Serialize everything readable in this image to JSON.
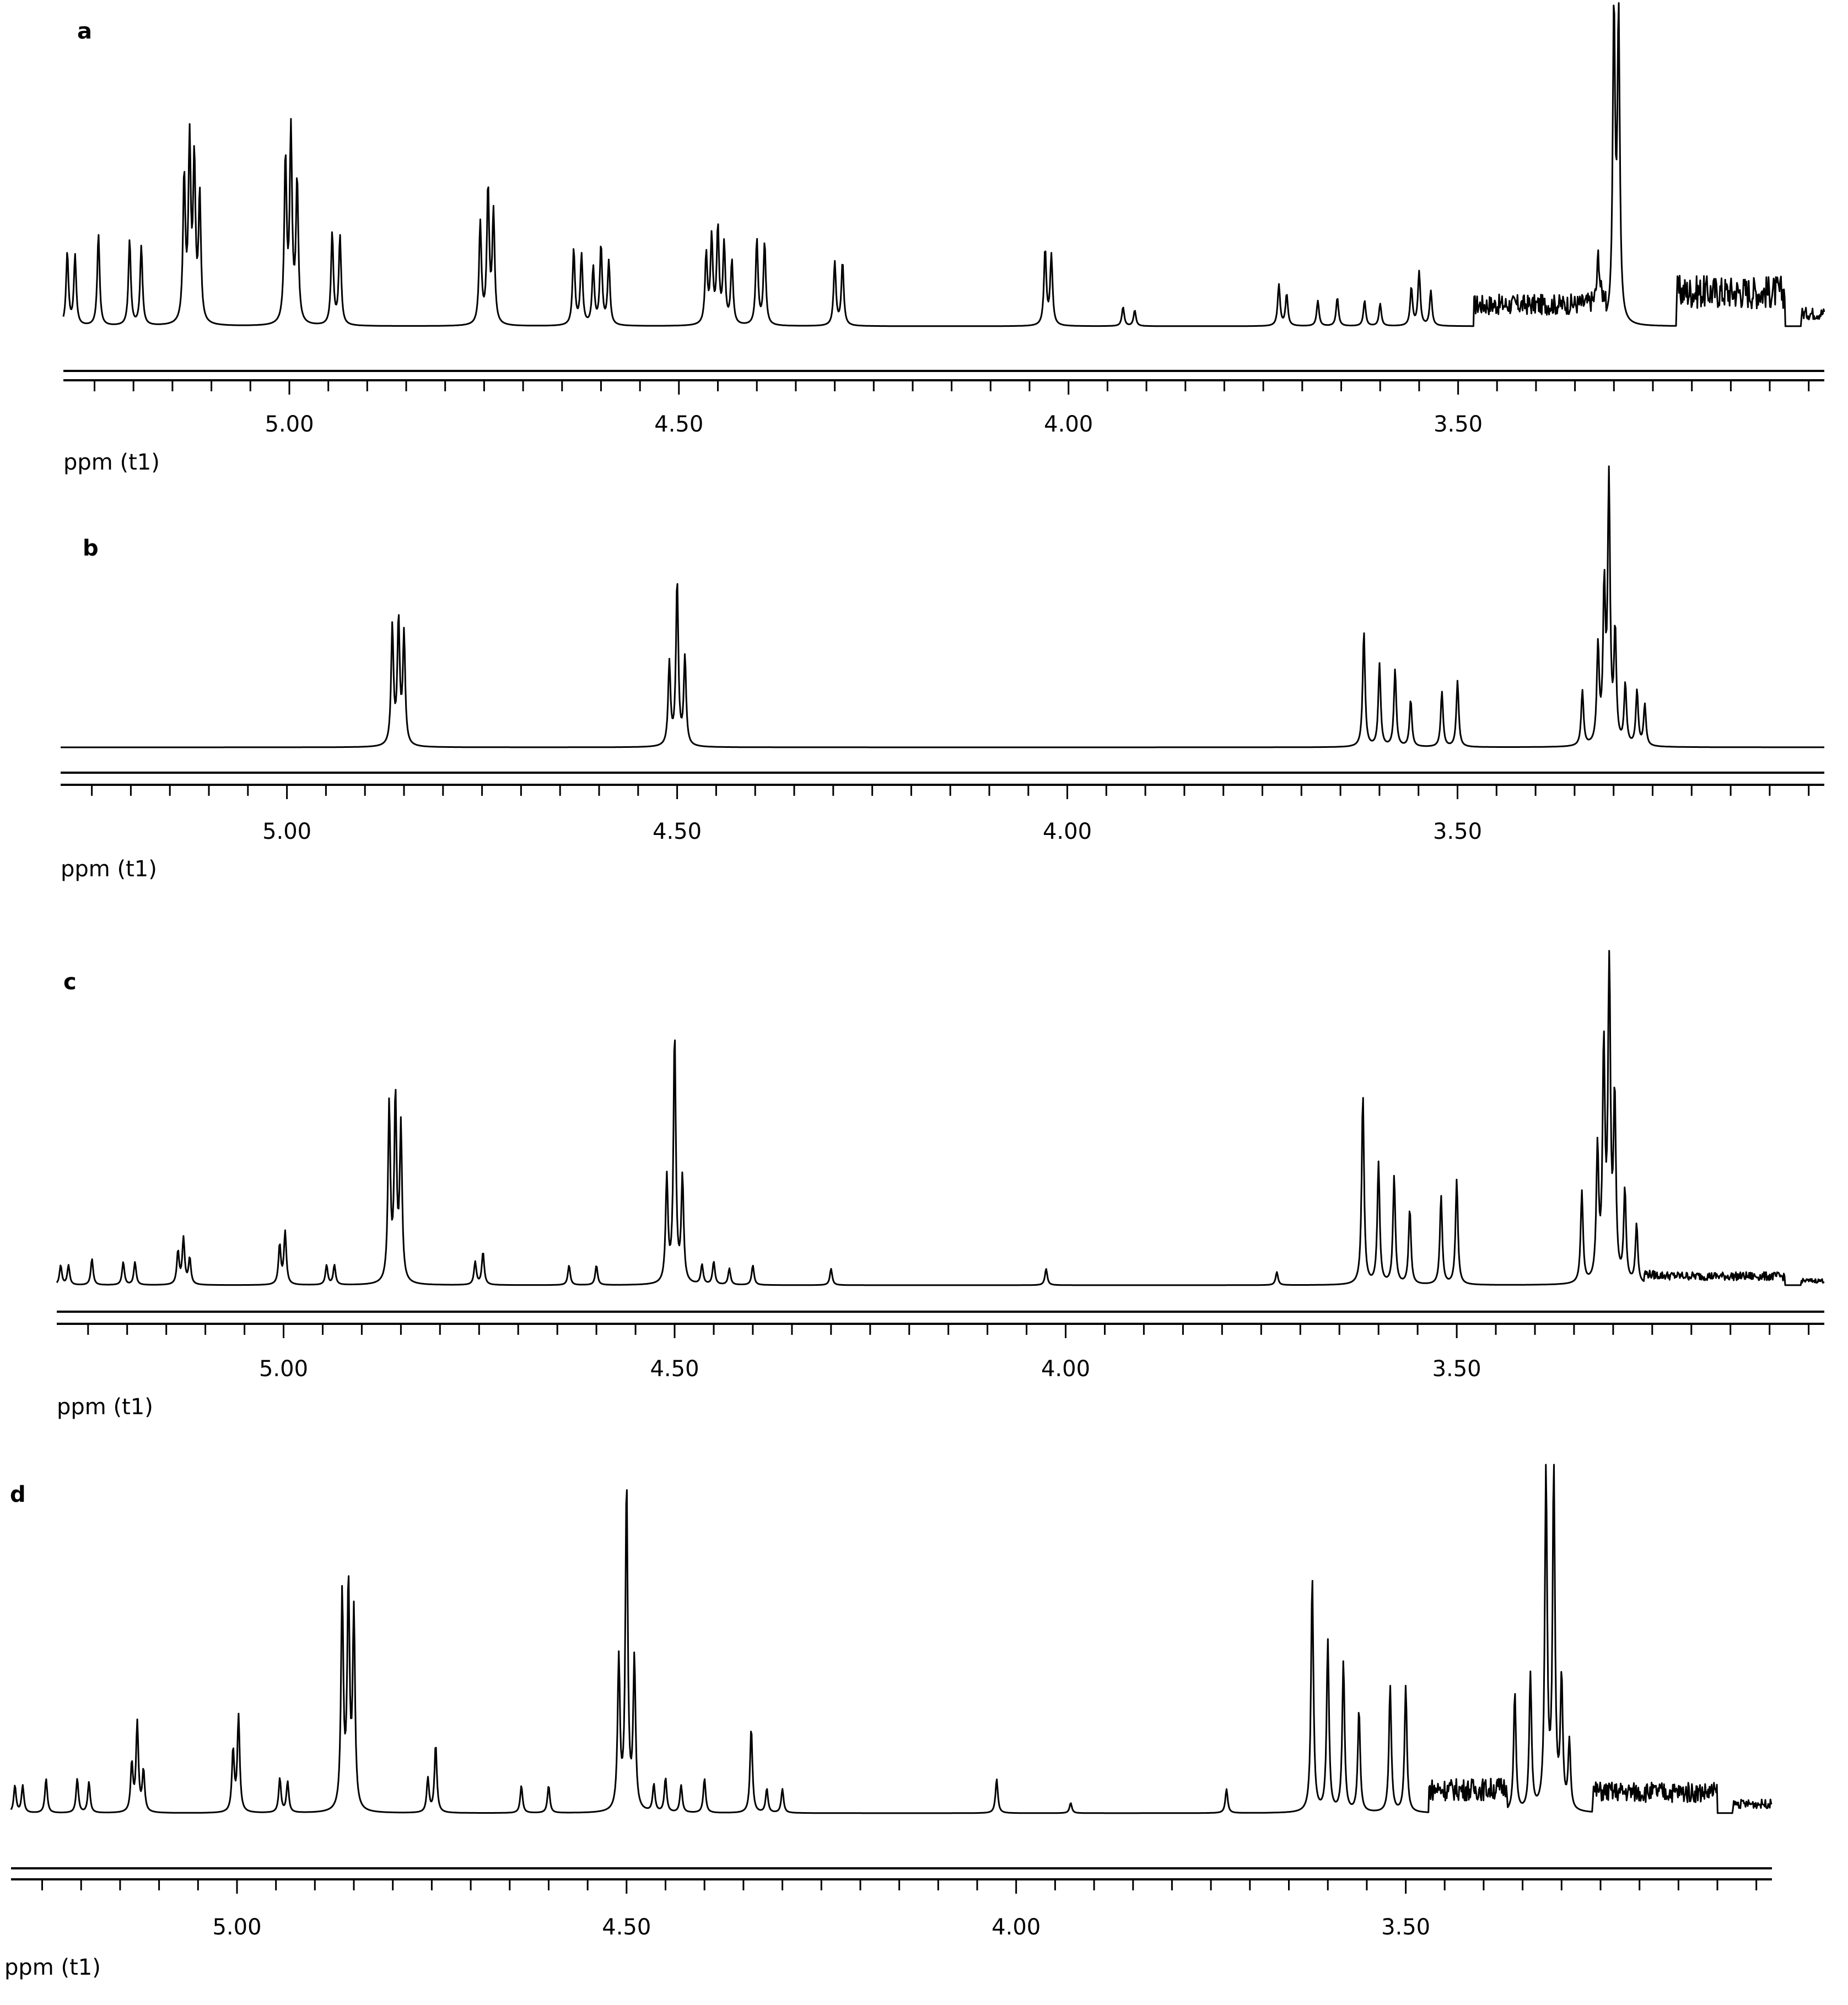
{
  "figure": {
    "stroke_color": "#000000",
    "background": "#ffffff"
  },
  "chart_data": [
    {
      "type": "line",
      "panel_label": "a",
      "xlabel": "ppm (t1)",
      "ylabel": "",
      "x_reversed": true,
      "xlim": [
        5.29,
        3.03
      ],
      "ylim": [
        0,
        1
      ],
      "xticks": [
        5.0,
        4.5,
        4.0,
        3.5
      ],
      "xtick_labels": [
        "5.00",
        "4.50",
        "4.00",
        "3.50"
      ],
      "peaks": [
        {
          "ppm": 5.285,
          "height": 0.23
        },
        {
          "ppm": 5.275,
          "height": 0.22
        },
        {
          "ppm": 5.245,
          "height": 0.29
        },
        {
          "ppm": 5.205,
          "height": 0.27
        },
        {
          "ppm": 5.19,
          "height": 0.25
        },
        {
          "ppm": 5.135,
          "height": 0.46
        },
        {
          "ppm": 5.128,
          "height": 0.56
        },
        {
          "ppm": 5.122,
          "height": 0.5
        },
        {
          "ppm": 5.115,
          "height": 0.4
        },
        {
          "ppm": 5.005,
          "height": 0.52
        },
        {
          "ppm": 4.998,
          "height": 0.6
        },
        {
          "ppm": 4.99,
          "height": 0.45
        },
        {
          "ppm": 4.945,
          "height": 0.29
        },
        {
          "ppm": 4.935,
          "height": 0.28
        },
        {
          "ppm": 4.755,
          "height": 0.32
        },
        {
          "ppm": 4.745,
          "height": 0.43
        },
        {
          "ppm": 4.738,
          "height": 0.35
        },
        {
          "ppm": 4.635,
          "height": 0.24
        },
        {
          "ppm": 4.625,
          "height": 0.22
        },
        {
          "ppm": 4.61,
          "height": 0.18
        },
        {
          "ppm": 4.6,
          "height": 0.25
        },
        {
          "ppm": 4.59,
          "height": 0.2
        },
        {
          "ppm": 4.465,
          "height": 0.22
        },
        {
          "ppm": 4.458,
          "height": 0.27
        },
        {
          "ppm": 4.45,
          "height": 0.3
        },
        {
          "ppm": 4.442,
          "height": 0.25
        },
        {
          "ppm": 4.432,
          "height": 0.2
        },
        {
          "ppm": 4.4,
          "height": 0.27
        },
        {
          "ppm": 4.39,
          "height": 0.26
        },
        {
          "ppm": 4.3,
          "height": 0.2
        },
        {
          "ppm": 4.29,
          "height": 0.2
        },
        {
          "ppm": 4.03,
          "height": 0.24
        },
        {
          "ppm": 4.022,
          "height": 0.22
        },
        {
          "ppm": 3.93,
          "height": 0.06
        },
        {
          "ppm": 3.915,
          "height": 0.05
        },
        {
          "ppm": 3.73,
          "height": 0.13
        },
        {
          "ppm": 3.72,
          "height": 0.1
        },
        {
          "ppm": 3.68,
          "height": 0.08
        },
        {
          "ppm": 3.655,
          "height": 0.09
        },
        {
          "ppm": 3.62,
          "height": 0.08
        },
        {
          "ppm": 3.6,
          "height": 0.07
        },
        {
          "ppm": 3.56,
          "height": 0.12
        },
        {
          "ppm": 3.55,
          "height": 0.17
        },
        {
          "ppm": 3.535,
          "height": 0.11
        },
        {
          "ppm": 3.3,
          "height": 0.98
        },
        {
          "ppm": 3.294,
          "height": 0.96
        },
        {
          "ppm": 3.32,
          "height": 0.15
        }
      ],
      "broad_features": [
        {
          "from": 3.48,
          "to": 3.31,
          "height": 0.1
        },
        {
          "from": 3.22,
          "to": 3.08,
          "height": 0.16
        },
        {
          "from": 3.06,
          "to": 3.03,
          "height": 0.06
        }
      ]
    },
    {
      "type": "line",
      "panel_label": "b",
      "xlabel": "ppm (t1)",
      "ylabel": "",
      "x_reversed": true,
      "xlim": [
        5.29,
        3.03
      ],
      "ylim": [
        0,
        1
      ],
      "xticks": [
        5.0,
        4.5,
        4.0,
        3.5
      ],
      "xtick_labels": [
        "5.00",
        "4.50",
        "4.00",
        "3.50"
      ],
      "peaks": [
        {
          "ppm": 4.865,
          "height": 0.43
        },
        {
          "ppm": 4.857,
          "height": 0.45
        },
        {
          "ppm": 4.85,
          "height": 0.4
        },
        {
          "ppm": 4.51,
          "height": 0.3
        },
        {
          "ppm": 4.5,
          "height": 0.6
        },
        {
          "ppm": 4.49,
          "height": 0.32
        },
        {
          "ppm": 3.62,
          "height": 0.42
        },
        {
          "ppm": 3.6,
          "height": 0.3
        },
        {
          "ppm": 3.58,
          "height": 0.28
        },
        {
          "ppm": 3.56,
          "height": 0.17
        },
        {
          "ppm": 3.52,
          "height": 0.2
        },
        {
          "ppm": 3.5,
          "height": 0.24
        },
        {
          "ppm": 3.34,
          "height": 0.2
        },
        {
          "ppm": 3.32,
          "height": 0.35
        },
        {
          "ppm": 3.312,
          "height": 0.55
        },
        {
          "ppm": 3.306,
          "height": 0.95
        },
        {
          "ppm": 3.298,
          "height": 0.4
        },
        {
          "ppm": 3.285,
          "height": 0.22
        },
        {
          "ppm": 3.27,
          "height": 0.2
        },
        {
          "ppm": 3.26,
          "height": 0.15
        }
      ],
      "broad_features": []
    },
    {
      "type": "line",
      "panel_label": "c",
      "xlabel": "ppm (t1)",
      "ylabel": "",
      "x_reversed": true,
      "xlim": [
        5.29,
        3.03
      ],
      "ylim": [
        0,
        1
      ],
      "xticks": [
        5.0,
        4.5,
        4.0,
        3.5
      ],
      "xtick_labels": [
        "5.00",
        "4.50",
        "4.00",
        "3.50"
      ],
      "peaks": [
        {
          "ppm": 5.285,
          "height": 0.06
        },
        {
          "ppm": 5.275,
          "height": 0.06
        },
        {
          "ppm": 5.245,
          "height": 0.08
        },
        {
          "ppm": 5.205,
          "height": 0.07
        },
        {
          "ppm": 5.19,
          "height": 0.07
        },
        {
          "ppm": 5.135,
          "height": 0.1
        },
        {
          "ppm": 5.128,
          "height": 0.14
        },
        {
          "ppm": 5.12,
          "height": 0.08
        },
        {
          "ppm": 5.005,
          "height": 0.12
        },
        {
          "ppm": 4.998,
          "height": 0.16
        },
        {
          "ppm": 4.945,
          "height": 0.06
        },
        {
          "ppm": 4.935,
          "height": 0.06
        },
        {
          "ppm": 4.865,
          "height": 0.54
        },
        {
          "ppm": 4.857,
          "height": 0.56
        },
        {
          "ppm": 4.85,
          "height": 0.47
        },
        {
          "ppm": 4.755,
          "height": 0.07
        },
        {
          "ppm": 4.745,
          "height": 0.1
        },
        {
          "ppm": 4.635,
          "height": 0.06
        },
        {
          "ppm": 4.6,
          "height": 0.06
        },
        {
          "ppm": 4.51,
          "height": 0.32
        },
        {
          "ppm": 4.5,
          "height": 0.76
        },
        {
          "ppm": 4.49,
          "height": 0.32
        },
        {
          "ppm": 4.465,
          "height": 0.06
        },
        {
          "ppm": 4.45,
          "height": 0.07
        },
        {
          "ppm": 4.43,
          "height": 0.05
        },
        {
          "ppm": 4.4,
          "height": 0.06
        },
        {
          "ppm": 4.3,
          "height": 0.05
        },
        {
          "ppm": 4.025,
          "height": 0.05
        },
        {
          "ppm": 3.73,
          "height": 0.04
        },
        {
          "ppm": 3.62,
          "height": 0.58
        },
        {
          "ppm": 3.6,
          "height": 0.37
        },
        {
          "ppm": 3.58,
          "height": 0.33
        },
        {
          "ppm": 3.56,
          "height": 0.23
        },
        {
          "ppm": 3.52,
          "height": 0.27
        },
        {
          "ppm": 3.5,
          "height": 0.32
        },
        {
          "ppm": 3.34,
          "height": 0.28
        },
        {
          "ppm": 3.32,
          "height": 0.4
        },
        {
          "ppm": 3.312,
          "height": 0.7
        },
        {
          "ppm": 3.305,
          "height": 0.98
        },
        {
          "ppm": 3.298,
          "height": 0.55
        },
        {
          "ppm": 3.285,
          "height": 0.28
        },
        {
          "ppm": 3.27,
          "height": 0.18
        }
      ],
      "broad_features": [
        {
          "from": 3.26,
          "to": 3.08,
          "height": 0.04
        },
        {
          "from": 3.06,
          "to": 3.03,
          "height": 0.02
        }
      ]
    },
    {
      "type": "line",
      "panel_label": "d",
      "xlabel": "ppm (t1)",
      "ylabel": "",
      "x_reversed": true,
      "xlim": [
        5.29,
        3.03
      ],
      "ylim": [
        0,
        1
      ],
      "xticks": [
        5.0,
        4.5,
        4.0,
        3.5
      ],
      "xtick_labels": [
        "5.00",
        "4.50",
        "4.00",
        "3.50"
      ],
      "peaks": [
        {
          "ppm": 5.285,
          "height": 0.08
        },
        {
          "ppm": 5.275,
          "height": 0.08
        },
        {
          "ppm": 5.245,
          "height": 0.1
        },
        {
          "ppm": 5.205,
          "height": 0.1
        },
        {
          "ppm": 5.19,
          "height": 0.09
        },
        {
          "ppm": 5.135,
          "height": 0.14
        },
        {
          "ppm": 5.128,
          "height": 0.26
        },
        {
          "ppm": 5.12,
          "height": 0.12
        },
        {
          "ppm": 5.005,
          "height": 0.18
        },
        {
          "ppm": 4.998,
          "height": 0.28
        },
        {
          "ppm": 4.945,
          "height": 0.1
        },
        {
          "ppm": 4.935,
          "height": 0.09
        },
        {
          "ppm": 4.865,
          "height": 0.63
        },
        {
          "ppm": 4.857,
          "height": 0.65
        },
        {
          "ppm": 4.85,
          "height": 0.57
        },
        {
          "ppm": 4.755,
          "height": 0.1
        },
        {
          "ppm": 4.745,
          "height": 0.2
        },
        {
          "ppm": 4.635,
          "height": 0.08
        },
        {
          "ppm": 4.6,
          "height": 0.08
        },
        {
          "ppm": 4.51,
          "height": 0.44
        },
        {
          "ppm": 4.5,
          "height": 0.96
        },
        {
          "ppm": 4.49,
          "height": 0.44
        },
        {
          "ppm": 4.465,
          "height": 0.08
        },
        {
          "ppm": 4.45,
          "height": 0.1
        },
        {
          "ppm": 4.43,
          "height": 0.08
        },
        {
          "ppm": 4.4,
          "height": 0.1
        },
        {
          "ppm": 4.34,
          "height": 0.25
        },
        {
          "ppm": 4.32,
          "height": 0.07
        },
        {
          "ppm": 4.3,
          "height": 0.07
        },
        {
          "ppm": 4.025,
          "height": 0.1
        },
        {
          "ppm": 3.93,
          "height": 0.03
        },
        {
          "ppm": 3.73,
          "height": 0.07
        },
        {
          "ppm": 3.62,
          "height": 0.69
        },
        {
          "ppm": 3.6,
          "height": 0.5
        },
        {
          "ppm": 3.58,
          "height": 0.44
        },
        {
          "ppm": 3.56,
          "height": 0.3
        },
        {
          "ppm": 3.52,
          "height": 0.37
        },
        {
          "ppm": 3.5,
          "height": 0.37
        },
        {
          "ppm": 3.36,
          "height": 0.35
        },
        {
          "ppm": 3.34,
          "height": 0.4
        },
        {
          "ppm": 3.32,
          "height": 1.0
        },
        {
          "ppm": 3.31,
          "height": 1.0
        },
        {
          "ppm": 3.3,
          "height": 0.38
        },
        {
          "ppm": 3.29,
          "height": 0.2
        }
      ],
      "broad_features": [
        {
          "from": 3.47,
          "to": 3.37,
          "height": 0.1
        },
        {
          "from": 3.26,
          "to": 3.1,
          "height": 0.09
        },
        {
          "from": 3.08,
          "to": 3.03,
          "height": 0.04
        }
      ]
    }
  ]
}
